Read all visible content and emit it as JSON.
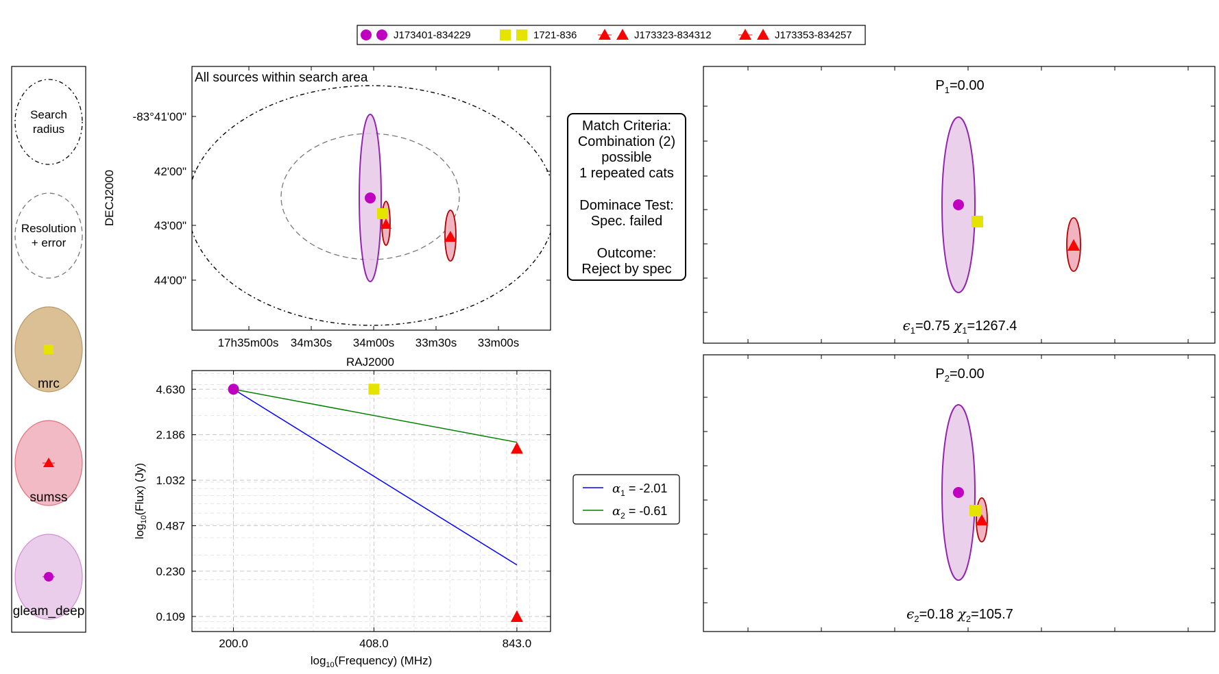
{
  "legend": {
    "entries": [
      {
        "label": "J173401-834229",
        "marker": "circle",
        "color": "#c000c0"
      },
      {
        "label": "1721-836",
        "marker": "square",
        "color": "#e4e400"
      },
      {
        "label": "J173323-834312",
        "marker": "triangle",
        "color": "#ff0000"
      },
      {
        "label": "J173353-834257",
        "marker": "triangle",
        "color": "#ff0000"
      }
    ]
  },
  "key_panel": {
    "search_label_1": "Search",
    "search_label_2": "radius",
    "resolution_label_1": "Resolution",
    "resolution_label_2": "+ error",
    "catalogs": [
      {
        "name": "mrc",
        "fill": "#d8b98a",
        "edge": "#b48c5a",
        "marker": "square",
        "marker_color": "#e4e400"
      },
      {
        "name": "sumss",
        "fill": "#f0b3bf",
        "edge": "#e06070",
        "marker": "triangle",
        "marker_color": "#ff0000"
      },
      {
        "name": "gleam_deep",
        "fill": "#e8c8e8",
        "edge": "#d080d0",
        "marker": "circle",
        "marker_color": "#c000c0"
      }
    ]
  },
  "sky_panel": {
    "title": "All sources within search area",
    "xlabel": "RAJ2000",
    "ylabel": "DECJ2000",
    "x_ticks": [
      "17h35m00s",
      "34m30s",
      "34m00s",
      "33m30s",
      "33m00s"
    ],
    "y_ticks": [
      "-83°41'00\"",
      "42'00\"",
      "43'00\"",
      "44'00\""
    ]
  },
  "criteria": {
    "lines": [
      "Match Criteria:",
      "Combination (2)",
      "possible",
      "1 repeated cats",
      "",
      "Dominace Test:",
      "Spec. failed",
      "",
      "Outcome:",
      "Reject by spec"
    ]
  },
  "combo1": {
    "p_label": "P",
    "p_sub": "1",
    "p_value": "=0.00",
    "eps_sym": "ϵ",
    "eps_sub": "1",
    "eps_value": "=0.75 ",
    "chi_sym": "χ",
    "chi_sub": "1",
    "chi_value": "=1267.4"
  },
  "combo2": {
    "p_label": "P",
    "p_sub": "2",
    "p_value": "=0.00",
    "eps_sym": "ϵ",
    "eps_sub": "2",
    "eps_value": "=0.18 ",
    "chi_sym": "χ",
    "chi_sub": "2",
    "chi_value": "=105.7"
  },
  "spectrum_legend": [
    {
      "sym": "α",
      "sub": "1",
      "text": " = -2.01",
      "color": "#0000ff"
    },
    {
      "sym": "α",
      "sub": "2",
      "text": " = -0.61",
      "color": "#008000"
    }
  ],
  "chart_data": {
    "type": "scatter",
    "xlabel_pre": "log",
    "xlabel_sub": "10",
    "xlabel_post": "(Frequency) (MHz)",
    "ylabel_pre": "log",
    "ylabel_sub": "10",
    "ylabel_post": "(Flux) (Jy)",
    "x_scale": "log",
    "y_scale": "log",
    "xlim": [
      162,
      1000
    ],
    "ylim": [
      0.085,
      6.3
    ],
    "x_ticks": [
      {
        "value": 200,
        "label": "200.0"
      },
      {
        "value": 408,
        "label": "408.0"
      },
      {
        "value": 843,
        "label": "843.0"
      }
    ],
    "y_ticks": [
      {
        "value": 4.63,
        "label": "4.630"
      },
      {
        "value": 2.186,
        "label": "2.186"
      },
      {
        "value": 1.032,
        "label": "1.032"
      },
      {
        "value": 0.487,
        "label": "0.487"
      },
      {
        "value": 0.23,
        "label": "0.230"
      },
      {
        "value": 0.109,
        "label": "0.109"
      }
    ],
    "grid": true,
    "points": [
      {
        "catalog": "gleam_deep",
        "marker": "circle",
        "color": "#c000c0",
        "x": 200,
        "y": 4.63
      },
      {
        "catalog": "mrc",
        "marker": "square",
        "color": "#e4e400",
        "x": 408,
        "y": 4.63
      },
      {
        "catalog": "sumss",
        "marker": "triangle",
        "color": "#ff0000",
        "x": 843,
        "y": 1.75
      },
      {
        "catalog": "sumss",
        "marker": "triangle",
        "color": "#ff0000",
        "x": 843,
        "y": 0.109
      }
    ],
    "fits": [
      {
        "alpha": -2.01,
        "color": "#0000ff",
        "x": [
          200,
          843
        ],
        "y": [
          4.63,
          0.255
        ]
      },
      {
        "alpha": -0.61,
        "color": "#008000",
        "x": [
          200,
          843
        ],
        "y": [
          4.63,
          1.93
        ]
      }
    ]
  }
}
